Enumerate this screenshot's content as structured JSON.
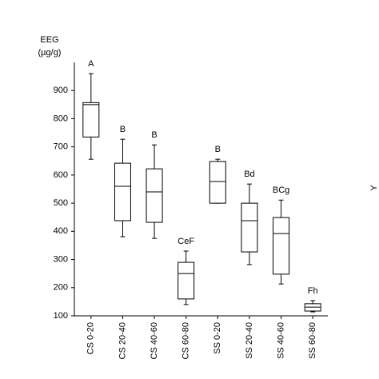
{
  "chart_data": {
    "type": "box",
    "y_label_lines": [
      "EEG",
      "(µg/g)"
    ],
    "categories": [
      "CS  0-20",
      "CS  20-40",
      "CS  40-60",
      "CS  60-80",
      "SS  0-20",
      "SS  20-40",
      "SS  40-60",
      "SS  60-80"
    ],
    "min": [
      656,
      381,
      375,
      140,
      500,
      282,
      213,
      114
    ],
    "q1": [
      735,
      438,
      432,
      160,
      500,
      327,
      248,
      117
    ],
    "median": [
      850,
      560,
      540,
      250,
      577,
      438,
      392,
      131
    ],
    "q3": [
      857,
      642,
      622,
      290,
      648,
      500,
      449,
      143
    ],
    "max": [
      960,
      727,
      707,
      330,
      656,
      568,
      511,
      154
    ],
    "group_letters": [
      "A",
      "B",
      "B",
      "CeF",
      "B",
      "Bd",
      "BCg",
      "Fh"
    ],
    "ylim": [
      100,
      1000
    ],
    "yticks": [
      100,
      200,
      300,
      400,
      500,
      600,
      700,
      800,
      900
    ],
    "color": "#000000",
    "edge_text": "Y"
  }
}
